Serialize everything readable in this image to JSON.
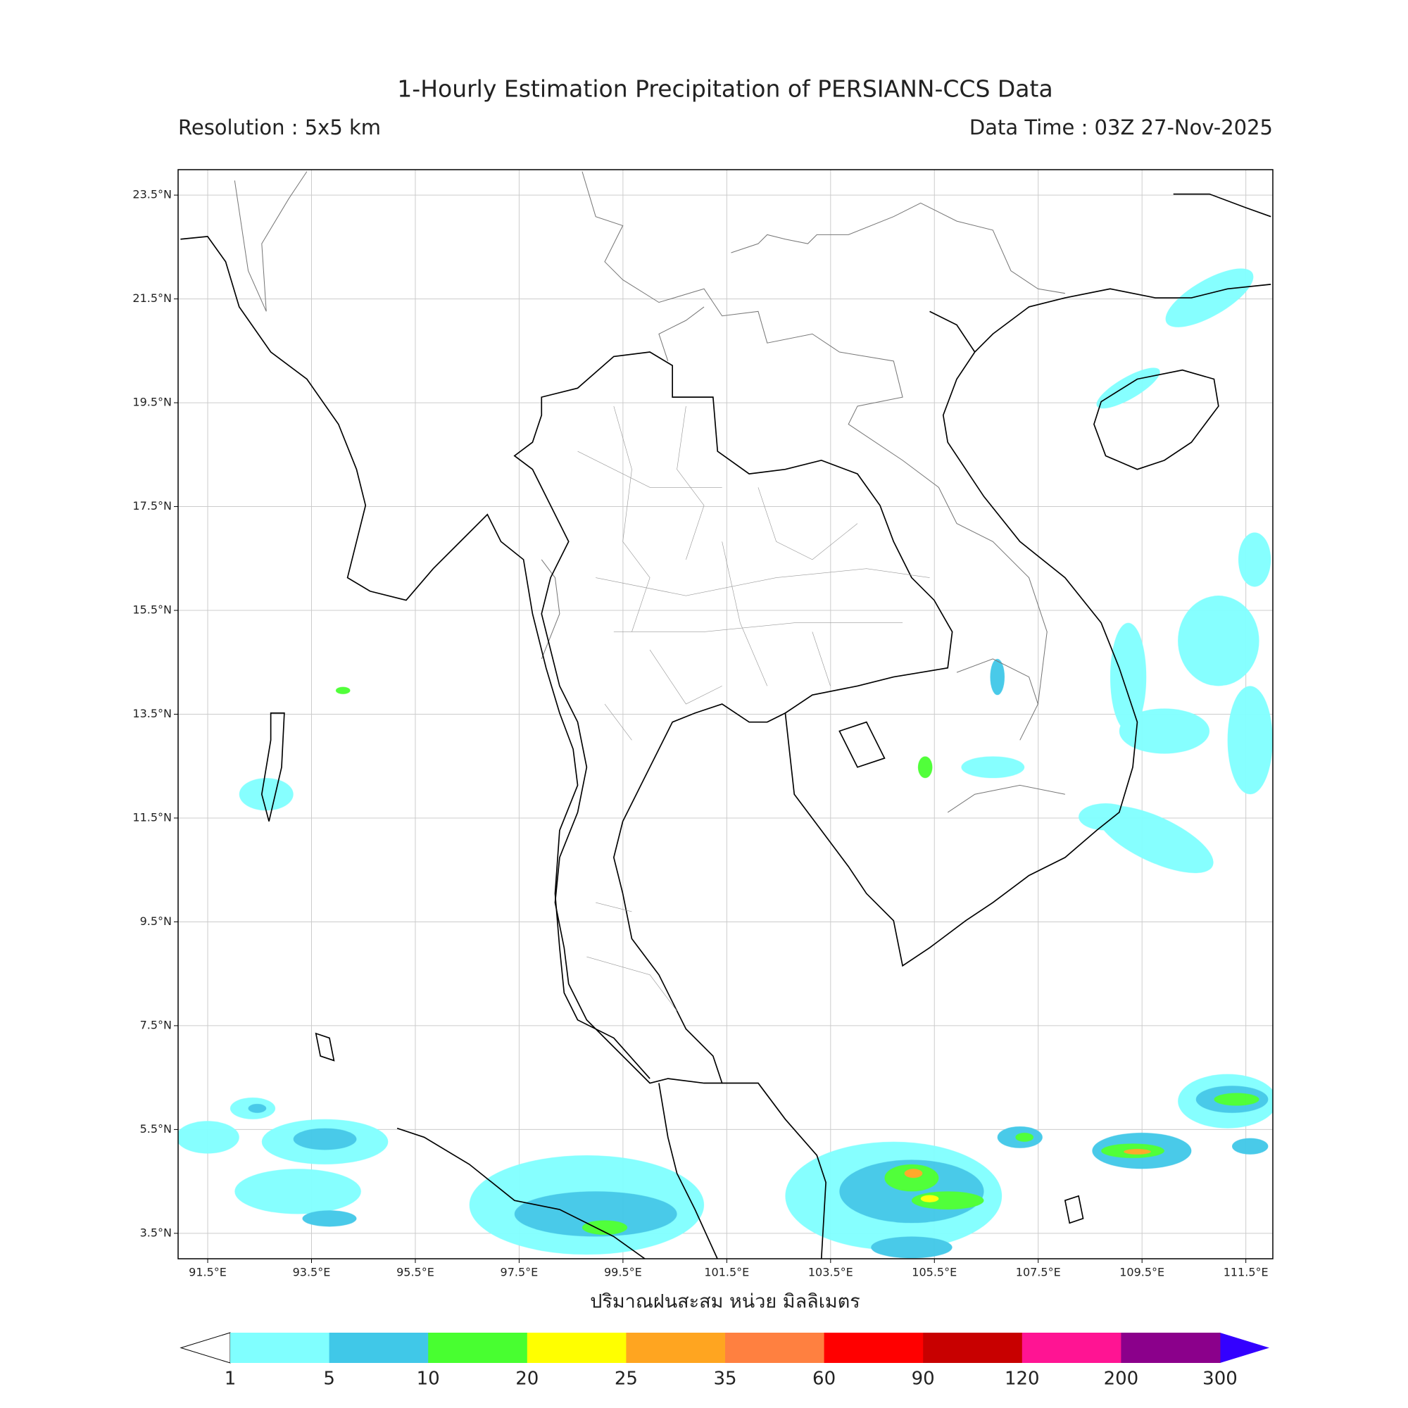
{
  "header": {
    "title": "1-Hourly Estimation Precipitation of PERSIANN-CCS Data",
    "resolution": "Resolution : 5x5 km",
    "data_time": "Data Time : 03Z 27-Nov-2025"
  },
  "map": {
    "xlim": [
      90.93,
      112.02
    ],
    "ylim": [
      3.01,
      23.99
    ],
    "xticks": [
      {
        "value": 91.5,
        "label": "91.5°E"
      },
      {
        "value": 93.5,
        "label": "93.5°E"
      },
      {
        "value": 95.5,
        "label": "95.5°E"
      },
      {
        "value": 97.5,
        "label": "97.5°E"
      },
      {
        "value": 99.5,
        "label": "99.5°E"
      },
      {
        "value": 101.5,
        "label": "101.5°E"
      },
      {
        "value": 103.5,
        "label": "103.5°E"
      },
      {
        "value": 105.5,
        "label": "105.5°E"
      },
      {
        "value": 107.5,
        "label": "107.5°E"
      },
      {
        "value": 109.5,
        "label": "109.5°E"
      },
      {
        "value": 111.5,
        "label": "111.5°E"
      }
    ],
    "yticks": [
      {
        "value": 3.5,
        "label": "3.5°N"
      },
      {
        "value": 5.5,
        "label": "5.5°N"
      },
      {
        "value": 7.5,
        "label": "7.5°N"
      },
      {
        "value": 9.5,
        "label": "9.5°N"
      },
      {
        "value": 11.5,
        "label": "11.5°N"
      },
      {
        "value": 13.5,
        "label": "13.5°N"
      },
      {
        "value": 15.5,
        "label": "15.5°N"
      },
      {
        "value": 17.5,
        "label": "17.5°N"
      },
      {
        "value": 19.5,
        "label": "19.5°N"
      },
      {
        "value": 21.5,
        "label": "21.5°N"
      },
      {
        "value": 23.5,
        "label": "23.5°N"
      }
    ],
    "grid": true,
    "xlabel": "ปริมาณฝนสะสม หน่วย มิลลิเมตร"
  },
  "colorbar": {
    "levels": [
      1,
      5,
      10,
      20,
      25,
      35,
      60,
      90,
      120,
      200,
      300
    ],
    "colors": [
      "#80ffff",
      "#40c8e8",
      "#48ff30",
      "#ffff00",
      "#ffa520",
      "#ff8040",
      "#ff0000",
      "#c80000",
      "#ff1493",
      "#8b008b"
    ],
    "under_color": "#ffffff",
    "over_color": "#3300ff"
  }
}
